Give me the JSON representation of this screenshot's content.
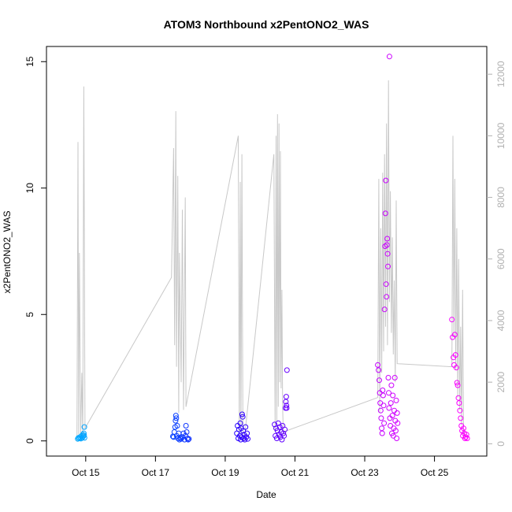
{
  "chart_data": {
    "type": "scatter",
    "title": "ATOM3 Northbound x2PentONO2_WAS",
    "xlabel": "Date",
    "ylabel": "x2PentONO2_WAS",
    "xlim": [
      "2017-10-13T21:00",
      "2017-10-26T12:00"
    ],
    "ylim": [
      -0.6,
      15.6
    ],
    "y2lim": [
      -400,
      12900
    ],
    "x_ticks": [
      {
        "date": "2017-10-15T00:00",
        "label": "Oct 15"
      },
      {
        "date": "2017-10-17T00:00",
        "label": "Oct 17"
      },
      {
        "date": "2017-10-19T00:00",
        "label": "Oct 19"
      },
      {
        "date": "2017-10-21T00:00",
        "label": "Oct 21"
      },
      {
        "date": "2017-10-23T00:00",
        "label": "Oct 23"
      },
      {
        "date": "2017-10-25T00:00",
        "label": "Oct 25"
      }
    ],
    "y_ticks": [
      0,
      5,
      10,
      15
    ],
    "y2_ticks": [
      0,
      2000,
      4000,
      6000,
      8000,
      10000,
      12000
    ],
    "grid": false,
    "colors": {
      "altitude_line": "#c8c8c8",
      "axis": "#000000",
      "right_axis": "#b0b0b0",
      "point_gradient": [
        "#00aaff",
        "#0055ff",
        "#2200ff",
        "#8800ff",
        "#cc00ff",
        "#ff00ff"
      ]
    },
    "series": [
      {
        "role": "scatter",
        "axis": "left",
        "points": [
          [
            "2017-10-14T18:30",
            0.08
          ],
          [
            "2017-10-14T19:00",
            0.12
          ],
          [
            "2017-10-14T19:40",
            0.1
          ],
          [
            "2017-10-14T20:10",
            0.15
          ],
          [
            "2017-10-14T20:40",
            0.09
          ],
          [
            "2017-10-14T21:10",
            0.2
          ],
          [
            "2017-10-14T21:40",
            0.13
          ],
          [
            "2017-10-14T22:00",
            0.25
          ],
          [
            "2017-10-14T22:20",
            0.18
          ],
          [
            "2017-10-14T22:40",
            0.3
          ],
          [
            "2017-10-14T22:55",
            0.22
          ],
          [
            "2017-10-14T23:05",
            0.55
          ],
          [
            "2017-10-14T23:10",
            0.12
          ],
          [
            "2017-10-17T12:00",
            0.18
          ],
          [
            "2017-10-17T12:30",
            0.15
          ],
          [
            "2017-10-17T13:00",
            0.35
          ],
          [
            "2017-10-17T13:30",
            0.55
          ],
          [
            "2017-10-17T13:50",
            0.8
          ],
          [
            "2017-10-17T14:05",
            1.0
          ],
          [
            "2017-10-17T14:20",
            0.9
          ],
          [
            "2017-10-17T14:40",
            0.2
          ],
          [
            "2017-10-17T15:00",
            0.6
          ],
          [
            "2017-10-17T15:30",
            0.1
          ],
          [
            "2017-10-17T16:00",
            0.3
          ],
          [
            "2017-10-17T16:30",
            0.05
          ],
          [
            "2017-10-17T17:00",
            0.12
          ],
          [
            "2017-10-17T17:40",
            0.08
          ],
          [
            "2017-10-17T18:30",
            0.15
          ],
          [
            "2017-10-17T19:20",
            0.3
          ],
          [
            "2017-10-17T20:00",
            0.05
          ],
          [
            "2017-10-17T20:40",
            0.2
          ],
          [
            "2017-10-17T21:00",
            0.6
          ],
          [
            "2017-10-17T21:30",
            0.35
          ],
          [
            "2017-10-17T22:00",
            0.1
          ],
          [
            "2017-10-17T22:30",
            0.05
          ],
          [
            "2017-10-17T23:00",
            0.08
          ],
          [
            "2017-10-19T08:00",
            0.3
          ],
          [
            "2017-10-19T08:30",
            0.6
          ],
          [
            "2017-10-19T09:00",
            0.1
          ],
          [
            "2017-10-19T09:30",
            0.45
          ],
          [
            "2017-10-19T10:00",
            0.2
          ],
          [
            "2017-10-19T10:20",
            0.7
          ],
          [
            "2017-10-19T10:40",
            0.05
          ],
          [
            "2017-10-19T11:00",
            0.5
          ],
          [
            "2017-10-19T11:20",
            0.15
          ],
          [
            "2017-10-19T11:40",
            1.05
          ],
          [
            "2017-10-19T12:00",
            0.95
          ],
          [
            "2017-10-19T12:20",
            0.4
          ],
          [
            "2017-10-19T12:40",
            0.1
          ],
          [
            "2017-10-19T13:00",
            0.25
          ],
          [
            "2017-10-19T13:30",
            0.05
          ],
          [
            "2017-10-19T14:00",
            0.55
          ],
          [
            "2017-10-19T14:30",
            0.15
          ],
          [
            "2017-10-19T15:00",
            0.3
          ],
          [
            "2017-10-19T15:30",
            0.08
          ],
          [
            "2017-10-20T10:00",
            0.65
          ],
          [
            "2017-10-20T10:30",
            0.2
          ],
          [
            "2017-10-20T11:00",
            0.5
          ],
          [
            "2017-10-20T11:30",
            0.1
          ],
          [
            "2017-10-20T12:00",
            0.4
          ],
          [
            "2017-10-20T12:30",
            0.7
          ],
          [
            "2017-10-20T13:00",
            0.25
          ],
          [
            "2017-10-20T13:30",
            0.55
          ],
          [
            "2017-10-20T14:00",
            0.15
          ],
          [
            "2017-10-20T14:30",
            0.35
          ],
          [
            "2017-10-20T15:00",
            0.05
          ],
          [
            "2017-10-20T15:30",
            0.6
          ],
          [
            "2017-10-20T16:00",
            0.3
          ],
          [
            "2017-10-20T16:30",
            0.2
          ],
          [
            "2017-10-20T17:00",
            0.45
          ],
          [
            "2017-10-20T17:30",
            1.3
          ],
          [
            "2017-10-20T17:45",
            1.55
          ],
          [
            "2017-10-20T18:00",
            1.75
          ],
          [
            "2017-10-20T18:10",
            1.4
          ],
          [
            "2017-10-20T18:20",
            1.3
          ],
          [
            "2017-10-20T18:30",
            2.8
          ],
          [
            "2017-10-23T09:00",
            3.0
          ],
          [
            "2017-10-23T09:30",
            2.8
          ],
          [
            "2017-10-23T10:00",
            2.4
          ],
          [
            "2017-10-23T10:20",
            1.9
          ],
          [
            "2017-10-23T10:40",
            1.5
          ],
          [
            "2017-10-23T11:00",
            1.2
          ],
          [
            "2017-10-23T11:20",
            0.9
          ],
          [
            "2017-10-23T11:40",
            0.5
          ],
          [
            "2017-10-23T12:00",
            0.3
          ],
          [
            "2017-10-23T12:20",
            2.0
          ],
          [
            "2017-10-23T12:40",
            1.8
          ],
          [
            "2017-10-23T13:00",
            1.4
          ],
          [
            "2017-10-23T13:20",
            0.7
          ],
          [
            "2017-10-23T13:40",
            5.2
          ],
          [
            "2017-10-23T14:00",
            7.7
          ],
          [
            "2017-10-23T14:15",
            9.0
          ],
          [
            "2017-10-23T14:30",
            10.3
          ],
          [
            "2017-10-23T14:45",
            6.2
          ],
          [
            "2017-10-23T15:00",
            5.7
          ],
          [
            "2017-10-23T15:15",
            7.75
          ],
          [
            "2017-10-23T15:30",
            8.0
          ],
          [
            "2017-10-23T15:45",
            7.4
          ],
          [
            "2017-10-23T16:00",
            6.9
          ],
          [
            "2017-10-23T16:15",
            2.5
          ],
          [
            "2017-10-23T16:30",
            1.9
          ],
          [
            "2017-10-23T16:45",
            1.3
          ],
          [
            "2017-10-23T17:00",
            15.2
          ],
          [
            "2017-10-23T17:20",
            0.9
          ],
          [
            "2017-10-23T17:40",
            0.6
          ],
          [
            "2017-10-23T18:00",
            1.5
          ],
          [
            "2017-10-23T18:20",
            2.2
          ],
          [
            "2017-10-23T18:40",
            0.3
          ],
          [
            "2017-10-23T19:00",
            1.0
          ],
          [
            "2017-10-23T19:20",
            1.8
          ],
          [
            "2017-10-23T19:40",
            0.2
          ],
          [
            "2017-10-23T20:00",
            0.5
          ],
          [
            "2017-10-23T20:20",
            1.2
          ],
          [
            "2017-10-23T20:40",
            2.5
          ],
          [
            "2017-10-23T21:00",
            0.8
          ],
          [
            "2017-10-23T21:20",
            0.4
          ],
          [
            "2017-10-23T21:40",
            1.6
          ],
          [
            "2017-10-23T22:00",
            0.1
          ],
          [
            "2017-10-23T22:20",
            1.1
          ],
          [
            "2017-10-23T22:40",
            0.7
          ],
          [
            "2017-10-25T12:00",
            4.8
          ],
          [
            "2017-10-25T12:30",
            4.1
          ],
          [
            "2017-10-25T13:00",
            3.3
          ],
          [
            "2017-10-25T13:30",
            3.0
          ],
          [
            "2017-10-25T14:00",
            4.2
          ],
          [
            "2017-10-25T14:30",
            3.4
          ],
          [
            "2017-10-25T15:00",
            2.9
          ],
          [
            "2017-10-25T15:30",
            2.3
          ],
          [
            "2017-10-25T16:00",
            2.2
          ],
          [
            "2017-10-25T16:30",
            1.7
          ],
          [
            "2017-10-25T17:00",
            1.5
          ],
          [
            "2017-10-25T17:30",
            1.2
          ],
          [
            "2017-10-25T18:00",
            0.9
          ],
          [
            "2017-10-25T18:30",
            0.6
          ],
          [
            "2017-10-25T19:00",
            0.4
          ],
          [
            "2017-10-25T19:30",
            0.2
          ],
          [
            "2017-10-25T20:00",
            0.5
          ],
          [
            "2017-10-25T20:30",
            0.3
          ],
          [
            "2017-10-25T21:00",
            0.1
          ],
          [
            "2017-10-25T21:30",
            0.15
          ],
          [
            "2017-10-25T22:00",
            0.25
          ],
          [
            "2017-10-25T22:30",
            0.1
          ]
        ]
      },
      {
        "role": "line",
        "axis": "right",
        "points": [
          [
            "2017-10-14T18:00",
            100
          ],
          [
            "2017-10-14T18:40",
            9800
          ],
          [
            "2017-10-14T19:10",
            300
          ],
          [
            "2017-10-14T19:40",
            6200
          ],
          [
            "2017-10-14T20:30",
            200
          ],
          [
            "2017-10-14T21:20",
            2300
          ],
          [
            "2017-10-14T22:00",
            150
          ],
          [
            "2017-10-14T22:40",
            11600
          ],
          [
            "2017-10-14T23:30",
            500
          ],
          [
            "2017-10-17T11:00",
            5400
          ],
          [
            "2017-10-17T12:30",
            9600
          ],
          [
            "2017-10-17T13:10",
            3200
          ],
          [
            "2017-10-17T14:00",
            10800
          ],
          [
            "2017-10-17T14:30",
            2500
          ],
          [
            "2017-10-17T15:20",
            8700
          ],
          [
            "2017-10-17T16:00",
            1000
          ],
          [
            "2017-10-17T16:30",
            6200
          ],
          [
            "2017-10-17T17:40",
            2000
          ],
          [
            "2017-10-17T18:30",
            7600
          ],
          [
            "2017-10-17T19:20",
            1100
          ],
          [
            "2017-10-17T20:30",
            8000
          ],
          [
            "2017-10-17T21:00",
            1200
          ],
          [
            "2017-10-19T09:00",
            10000
          ],
          [
            "2017-10-19T09:40",
            200
          ],
          [
            "2017-10-19T10:20",
            8500
          ],
          [
            "2017-10-19T10:50",
            300
          ],
          [
            "2017-10-19T11:30",
            9400
          ],
          [
            "2017-10-19T12:10",
            150
          ],
          [
            "2017-10-19T12:50",
            100
          ],
          [
            "2017-10-19T13:40",
            350
          ],
          [
            "2017-10-20T09:30",
            9400
          ],
          [
            "2017-10-20T10:20",
            400
          ],
          [
            "2017-10-20T11:00",
            10000
          ],
          [
            "2017-10-20T11:30",
            700
          ],
          [
            "2017-10-20T12:00",
            10700
          ],
          [
            "2017-10-20T12:30",
            1200
          ],
          [
            "2017-10-20T13:00",
            10400
          ],
          [
            "2017-10-20T13:30",
            2000
          ],
          [
            "2017-10-20T14:00",
            9500
          ],
          [
            "2017-10-20T14:30",
            1800
          ],
          [
            "2017-10-20T15:00",
            5000
          ],
          [
            "2017-10-20T15:30",
            1200
          ],
          [
            "2017-10-20T16:00",
            300
          ],
          [
            "2017-10-20T17:00",
            400
          ],
          [
            "2017-10-23T09:00",
            1500
          ],
          [
            "2017-10-23T09:40",
            8600
          ],
          [
            "2017-10-23T10:20",
            1000
          ],
          [
            "2017-10-23T11:00",
            7000
          ],
          [
            "2017-10-23T11:40",
            2300
          ],
          [
            "2017-10-23T12:20",
            8800
          ],
          [
            "2017-10-23T13:00",
            3000
          ],
          [
            "2017-10-23T13:40",
            9400
          ],
          [
            "2017-10-23T14:20",
            3800
          ],
          [
            "2017-10-23T15:00",
            10400
          ],
          [
            "2017-10-23T15:40",
            3200
          ],
          [
            "2017-10-23T16:20",
            11800
          ],
          [
            "2017-10-23T17:00",
            4600
          ],
          [
            "2017-10-23T17:40",
            8200
          ],
          [
            "2017-10-23T18:20",
            3600
          ],
          [
            "2017-10-23T19:00",
            6700
          ],
          [
            "2017-10-23T19:40",
            2900
          ],
          [
            "2017-10-23T20:20",
            5300
          ],
          [
            "2017-10-23T21:00",
            2000
          ],
          [
            "2017-10-23T21:40",
            7900
          ],
          [
            "2017-10-23T22:20",
            2600
          ],
          [
            "2017-10-25T12:00",
            2500
          ],
          [
            "2017-10-25T12:40",
            10000
          ],
          [
            "2017-10-25T13:20",
            3500
          ],
          [
            "2017-10-25T14:00",
            8600
          ],
          [
            "2017-10-25T14:40",
            2400
          ],
          [
            "2017-10-25T15:20",
            7000
          ],
          [
            "2017-10-25T16:00",
            1500
          ],
          [
            "2017-10-25T16:40",
            6000
          ],
          [
            "2017-10-25T17:20",
            1100
          ],
          [
            "2017-10-25T18:00",
            3800
          ],
          [
            "2017-10-25T18:40",
            600
          ],
          [
            "2017-10-25T19:20",
            5000
          ],
          [
            "2017-10-25T20:00",
            200
          ],
          [
            "2017-10-25T20:40",
            400
          ]
        ]
      }
    ]
  }
}
